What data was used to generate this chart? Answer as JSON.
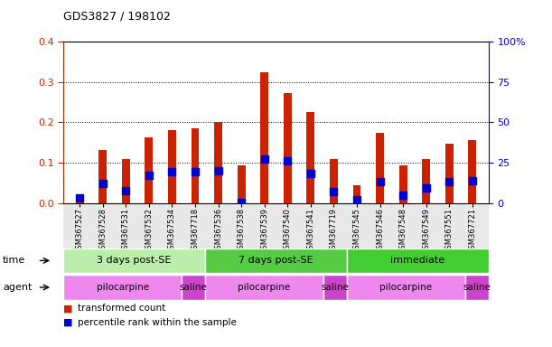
{
  "title": "GDS3827 / 198102",
  "samples": [
    "GSM367527",
    "GSM367528",
    "GSM367531",
    "GSM367532",
    "GSM367534",
    "GSM367718",
    "GSM367536",
    "GSM367538",
    "GSM367539",
    "GSM367540",
    "GSM367541",
    "GSM367719",
    "GSM367545",
    "GSM367546",
    "GSM367548",
    "GSM367549",
    "GSM367551",
    "GSM367721"
  ],
  "transformed_count": [
    0.008,
    0.132,
    0.11,
    0.163,
    0.18,
    0.185,
    0.2,
    0.093,
    0.325,
    0.273,
    0.225,
    0.108,
    0.044,
    0.173,
    0.093,
    0.11,
    0.147,
    0.155
  ],
  "percentile_rank": [
    0.012,
    0.048,
    0.03,
    0.068,
    0.078,
    0.078,
    0.08,
    0.002,
    0.108,
    0.105,
    0.073,
    0.028,
    0.008,
    0.053,
    0.02,
    0.038,
    0.052,
    0.055
  ],
  "bar_color": "#cc2200",
  "blue_color": "#0000cc",
  "background_color": "#ffffff",
  "ylim_left": [
    0,
    0.4
  ],
  "ylim_right": [
    0,
    100
  ],
  "yticks_left": [
    0.0,
    0.1,
    0.2,
    0.3,
    0.4
  ],
  "yticks_right": [
    0,
    25,
    50,
    75,
    100
  ],
  "ytick_labels_right": [
    "0",
    "25",
    "50",
    "75",
    "100%"
  ],
  "time_groups": [
    {
      "label": "3 days post-SE",
      "start": 0,
      "end": 6,
      "color": "#bbeeaa"
    },
    {
      "label": "7 days post-SE",
      "start": 6,
      "end": 12,
      "color": "#55cc44"
    },
    {
      "label": "immediate",
      "start": 12,
      "end": 18,
      "color": "#44cc33"
    }
  ],
  "agent_groups": [
    {
      "label": "pilocarpine",
      "start": 0,
      "end": 5,
      "color": "#ee88ee"
    },
    {
      "label": "saline",
      "start": 5,
      "end": 6,
      "color": "#cc44cc"
    },
    {
      "label": "pilocarpine",
      "start": 6,
      "end": 11,
      "color": "#ee88ee"
    },
    {
      "label": "saline",
      "start": 11,
      "end": 12,
      "color": "#cc44cc"
    },
    {
      "label": "pilocarpine",
      "start": 12,
      "end": 17,
      "color": "#ee88ee"
    },
    {
      "label": "saline",
      "start": 17,
      "end": 18,
      "color": "#cc44cc"
    }
  ],
  "legend_items": [
    {
      "label": "transformed count",
      "color": "#cc2200"
    },
    {
      "label": "percentile rank within the sample",
      "color": "#0000cc"
    }
  ],
  "time_label": "time",
  "agent_label": "agent",
  "axis_color_left": "#cc2200",
  "axis_color_right": "#0000cc"
}
